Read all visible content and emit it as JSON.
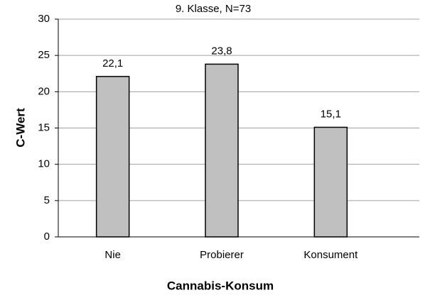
{
  "chart_data": {
    "type": "bar",
    "title": "9. Klasse, N=73",
    "y_label": "C-Wert",
    "x_label": "Cannabis-Konsum",
    "categories": [
      "Nie",
      "Probierer",
      "Konsument"
    ],
    "values": [
      22.1,
      23.8,
      15.1
    ],
    "value_labels": [
      "22,1",
      "23,8",
      "15,1"
    ],
    "color": "#c0c0c0",
    "ylim": [
      0,
      30
    ],
    "yticks": [
      0,
      5,
      10,
      15,
      20,
      25,
      30
    ],
    "grid": true
  }
}
